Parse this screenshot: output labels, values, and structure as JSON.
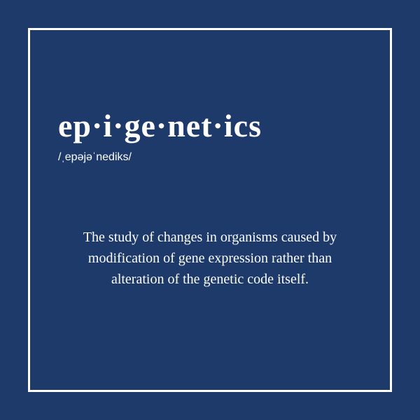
{
  "card": {
    "word": "ep·i·ge·net·ics",
    "pronunciation": "/ˌepəjəˈnediks/",
    "definition": "The study of changes in organisms caused by modification of gene expression rather than alteration of the genetic code itself.",
    "background_color": "#1d3a6b",
    "border_color": "#ffffff",
    "text_color": "#ffffff",
    "title_fontsize": 46,
    "pronunciation_fontsize": 16,
    "definition_fontsize": 20
  }
}
